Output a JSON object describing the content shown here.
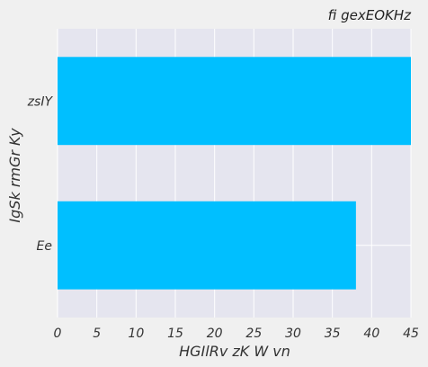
{
  "chart_data": {
    "type": "bar",
    "orientation": "horizontal",
    "title": "fi gexEOKHz",
    "xlabel": "HGIlRv zK W vn",
    "ylabel": "IgSk rmGr Ky",
    "categories": [
      "Ee",
      "zsIY"
    ],
    "values": [
      38,
      45
    ],
    "xlim": [
      0,
      45
    ],
    "x_ticks": [
      0,
      5,
      10,
      15,
      20,
      25,
      30,
      35,
      40,
      45
    ],
    "grid": true,
    "bar_color": "#00bfff",
    "plot_background": "#e5e5ef",
    "grid_color": "#ffffff",
    "page_background": "#f0f0f0"
  }
}
